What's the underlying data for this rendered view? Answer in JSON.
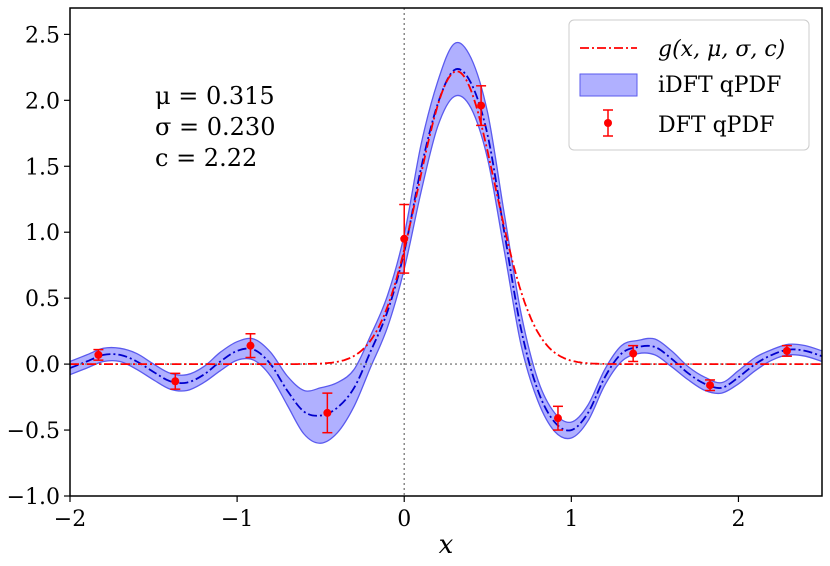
{
  "chart_data": {
    "type": "line",
    "xlabel": "x",
    "ylabel": "",
    "xlim": [
      -2.0,
      2.5
    ],
    "ylim": [
      -1.0,
      2.7
    ],
    "grid": false,
    "x_ticks": [
      "−2",
      "−1",
      "0",
      "1",
      "2"
    ],
    "x_tick_values": [
      -2,
      -1,
      0,
      1,
      2
    ],
    "y_ticks": [
      "−1.0",
      "−0.5",
      "0.0",
      "0.5",
      "1.0",
      "1.5",
      "2.0",
      "2.5"
    ],
    "y_tick_values": [
      -1.0,
      -0.5,
      0.0,
      0.5,
      1.0,
      1.5,
      2.0,
      2.5
    ],
    "reference_lines": {
      "x": 0,
      "y": 0,
      "style": "dotted",
      "color": "#808080"
    },
    "annotations": [
      "μ = 0.315",
      "σ = 0.230",
      "c = 2.22"
    ],
    "legend": {
      "placement": "top-right",
      "entries": [
        "g(x, μ, σ, c)",
        "iDFT qPDF",
        "DFT qPDF"
      ]
    },
    "series": [
      {
        "name": "g(x, μ, σ, c)",
        "kind": "line",
        "style": "dash-dot",
        "color": "#ff0000",
        "params": {
          "mu": 0.315,
          "sigma": 0.23,
          "c": 2.22
        }
      },
      {
        "name": "iDFT qPDF",
        "kind": "band",
        "fill": "#b0b0ff",
        "edge": "#5a5aee",
        "central_line": "#0000cc",
        "x": [
          -2.0,
          -1.9,
          -1.8,
          -1.7,
          -1.6,
          -1.5,
          -1.4,
          -1.3,
          -1.2,
          -1.1,
          -1.0,
          -0.9,
          -0.8,
          -0.7,
          -0.6,
          -0.5,
          -0.4,
          -0.3,
          -0.2,
          -0.1,
          0.0,
          0.1,
          0.2,
          0.3,
          0.4,
          0.5,
          0.6,
          0.7,
          0.8,
          0.9,
          1.0,
          1.1,
          1.2,
          1.3,
          1.4,
          1.5,
          1.6,
          1.7,
          1.8,
          1.9,
          2.0,
          2.1,
          2.2,
          2.3,
          2.4,
          2.5
        ],
        "central": [
          -0.03,
          0.02,
          0.07,
          0.07,
          0.02,
          -0.06,
          -0.13,
          -0.14,
          -0.08,
          0.02,
          0.1,
          0.11,
          0.0,
          -0.2,
          -0.36,
          -0.39,
          -0.33,
          -0.18,
          0.1,
          0.4,
          0.85,
          1.48,
          1.97,
          2.23,
          2.13,
          1.73,
          0.99,
          0.26,
          -0.2,
          -0.44,
          -0.5,
          -0.37,
          -0.1,
          0.08,
          0.13,
          0.13,
          0.04,
          -0.07,
          -0.15,
          -0.18,
          -0.1,
          0.0,
          0.07,
          0.11,
          0.1,
          0.06
        ],
        "lower": [
          -0.08,
          -0.03,
          0.02,
          0.02,
          -0.04,
          -0.12,
          -0.19,
          -0.2,
          -0.14,
          -0.05,
          0.03,
          0.03,
          -0.09,
          -0.31,
          -0.53,
          -0.6,
          -0.52,
          -0.32,
          -0.02,
          0.28,
          0.72,
          1.3,
          1.8,
          2.03,
          1.94,
          1.55,
          0.85,
          0.14,
          -0.28,
          -0.51,
          -0.56,
          -0.43,
          -0.16,
          0.02,
          0.08,
          0.07,
          -0.02,
          -0.12,
          -0.2,
          -0.22,
          -0.15,
          -0.05,
          0.03,
          0.07,
          0.06,
          0.02
        ],
        "upper": [
          0.02,
          0.07,
          0.12,
          0.12,
          0.08,
          0.0,
          -0.07,
          -0.08,
          -0.02,
          0.09,
          0.17,
          0.19,
          0.09,
          -0.09,
          -0.2,
          -0.18,
          -0.14,
          -0.04,
          0.22,
          0.52,
          0.98,
          1.66,
          2.14,
          2.43,
          2.32,
          1.9,
          1.13,
          0.38,
          -0.12,
          -0.37,
          -0.44,
          -0.31,
          -0.04,
          0.14,
          0.18,
          0.19,
          0.1,
          -0.02,
          -0.1,
          -0.14,
          -0.05,
          0.05,
          0.11,
          0.15,
          0.14,
          0.1
        ]
      },
      {
        "name": "DFT qPDF",
        "kind": "errorbar",
        "color": "#ff0000",
        "x": [
          -1.83,
          -1.37,
          -0.92,
          -0.46,
          0.0,
          0.46,
          0.92,
          1.37,
          1.83,
          2.29
        ],
        "y": [
          0.07,
          -0.13,
          0.14,
          -0.37,
          0.95,
          1.96,
          -0.41,
          0.08,
          -0.16,
          0.1
        ],
        "err": [
          0.04,
          0.06,
          0.09,
          0.15,
          0.26,
          0.15,
          0.09,
          0.06,
          0.04,
          0.04
        ]
      }
    ]
  }
}
